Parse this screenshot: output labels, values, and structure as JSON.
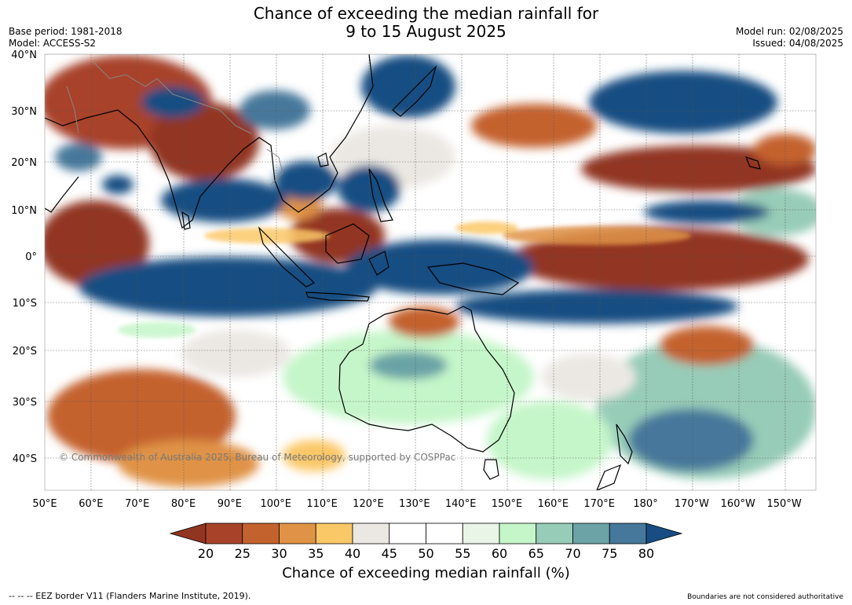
{
  "title_line1": "Chance of exceeding the median rainfall for",
  "title_line2": "9 to 15 August 2025",
  "meta_left": [
    "Base period: 1981-2018",
    "Model: ACCESS-S2"
  ],
  "meta_right": [
    "Model run: 02/08/2025",
    "Issued: 04/08/2025"
  ],
  "watermark": "© Commonwealth of Australia 2025, Bureau of Meteorology, supported by COSPPac",
  "lat_labels": [
    {
      "text": "40°N",
      "lat": 40
    },
    {
      "text": "30°N",
      "lat": 30
    },
    {
      "text": "20°N",
      "lat": 20
    },
    {
      "text": "10°N",
      "lat": 10
    },
    {
      "text": "0°",
      "lat": 0
    },
    {
      "text": "10°S",
      "lat": -10
    },
    {
      "text": "20°S",
      "lat": -20
    },
    {
      "text": "30°S",
      "lat": -30
    },
    {
      "text": "40°S",
      "lat": -40
    }
  ],
  "lon_labels": [
    {
      "text": "50°E",
      "lon": 50
    },
    {
      "text": "60°E",
      "lon": 60
    },
    {
      "text": "70°E",
      "lon": 70
    },
    {
      "text": "80°E",
      "lon": 80
    },
    {
      "text": "90°E",
      "lon": 90
    },
    {
      "text": "100°E",
      "lon": 100
    },
    {
      "text": "110°E",
      "lon": 110
    },
    {
      "text": "120°E",
      "lon": 120
    },
    {
      "text": "130°E",
      "lon": 130
    },
    {
      "text": "140°E",
      "lon": 140
    },
    {
      "text": "150°E",
      "lon": 150
    },
    {
      "text": "160°E",
      "lon": 160
    },
    {
      "text": "170°E",
      "lon": 170
    },
    {
      "text": "180°",
      "lon": 180
    },
    {
      "text": "170°W",
      "lon": 190
    },
    {
      "text": "160°W",
      "lon": 200
    },
    {
      "text": "150°W",
      "lon": 210
    }
  ],
  "colorbar": {
    "ticks": [
      "20",
      "25",
      "30",
      "35",
      "40",
      "45",
      "50",
      "55",
      "60",
      "65",
      "70",
      "75",
      "80"
    ],
    "colors": [
      "#923520",
      "#a8432a",
      "#c4622e",
      "#e09346",
      "#fbc868",
      "#ebe8e3",
      "#ffffff",
      "#ffffff",
      "#e9f6e7",
      "#c5f6c9",
      "#97ccb8",
      "#6ba3a6",
      "#46789b",
      "#174d82"
    ],
    "label": "Chance of exceeding median rainfall (%)"
  },
  "footer_left": "--  --  -- EEZ border V11 (Flanders Marine Institute, 2019).",
  "footer_right": "Boundaries are not considered authoritative"
}
